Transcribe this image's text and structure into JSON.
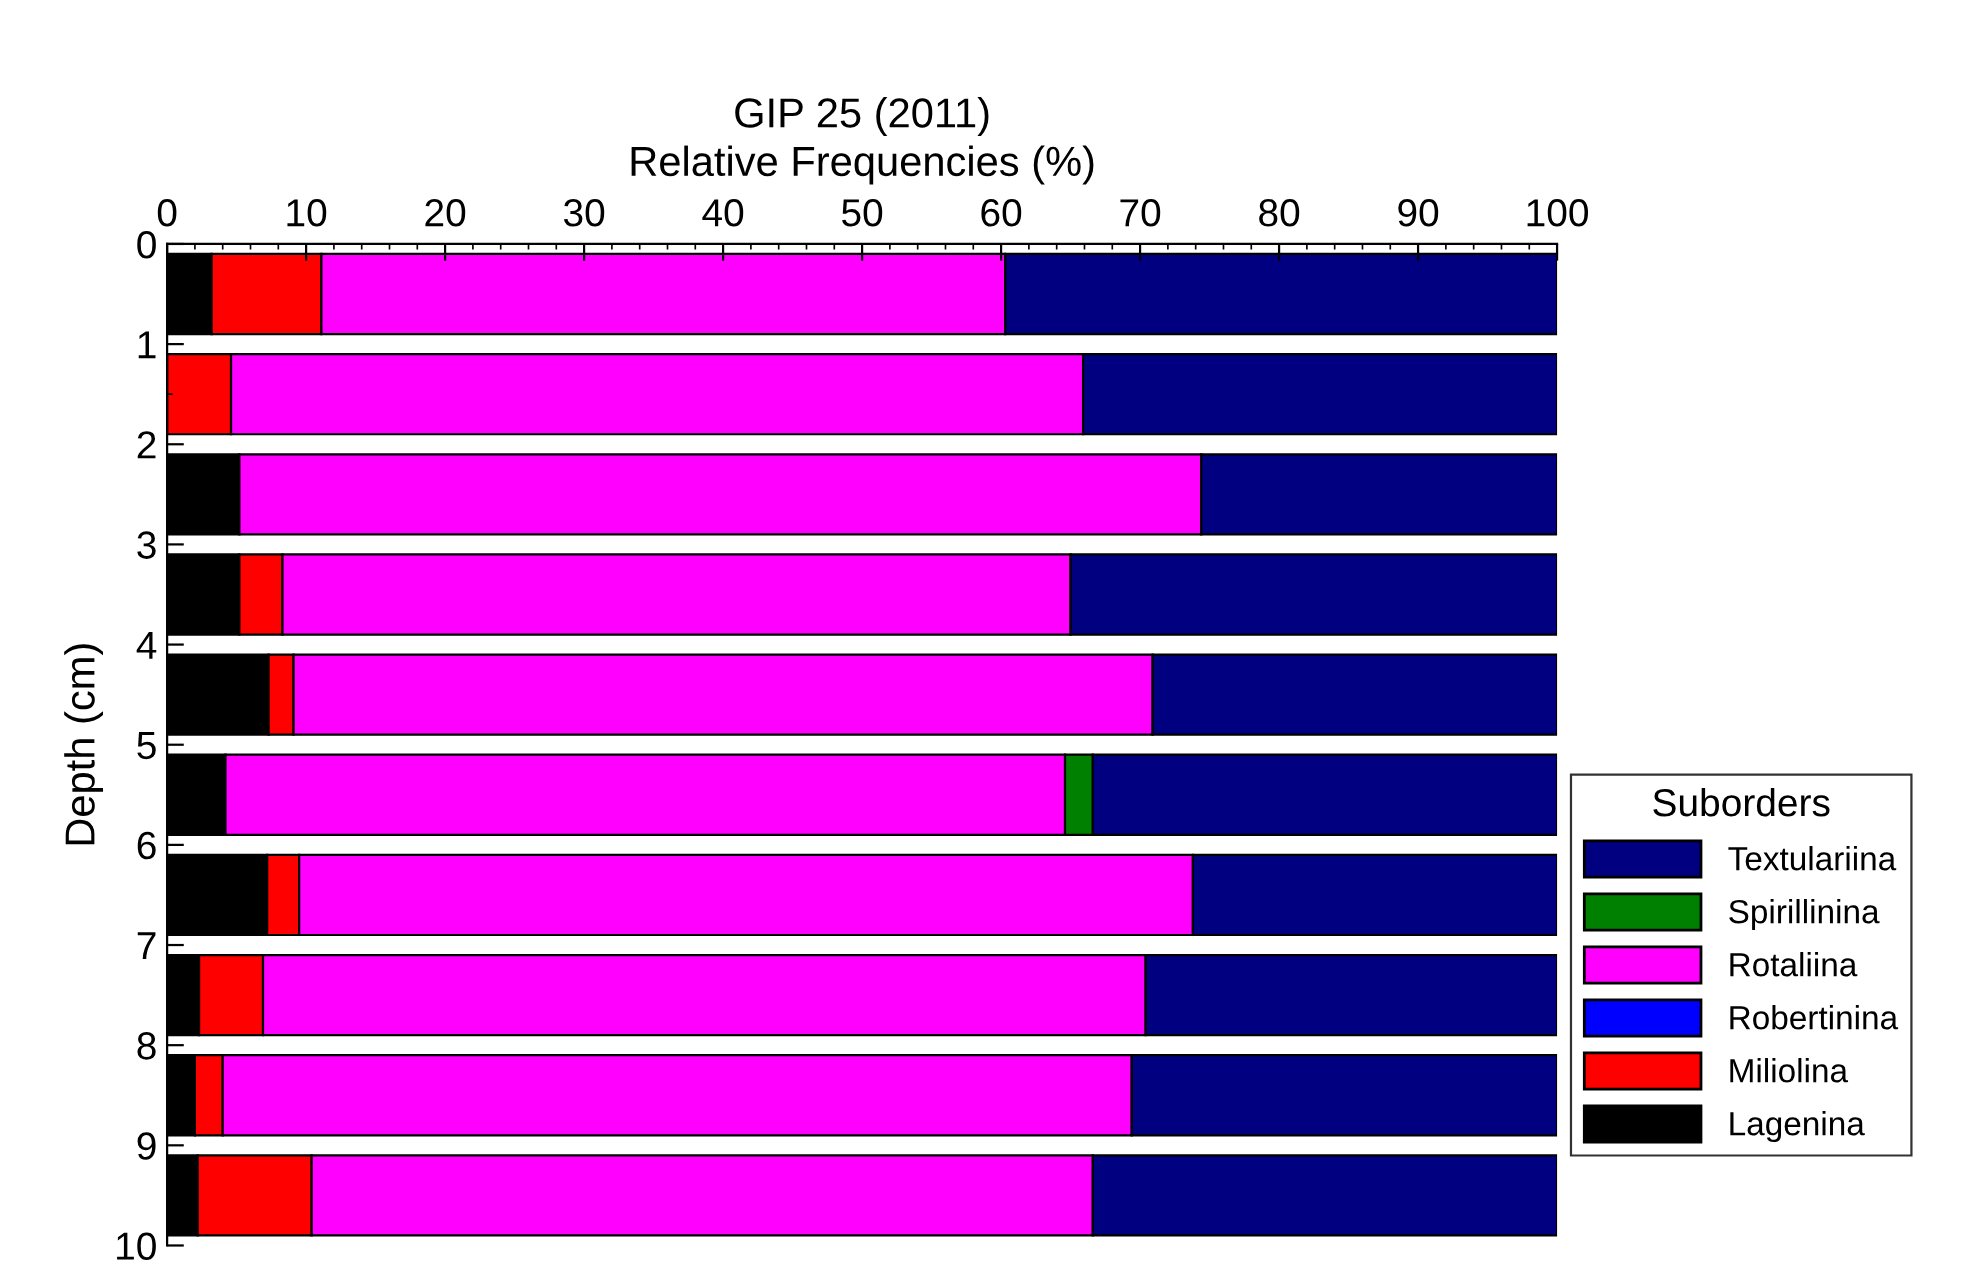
{
  "chart_data": {
    "type": "bar",
    "orientation": "horizontal",
    "stacked": true,
    "title": "GIP 25 (2011)",
    "xlabel": "Relative Frequencies (%)",
    "ylabel": "Depth (cm)",
    "legend_title": "Suborders",
    "legend": "right",
    "x": [
      0.5,
      1.5,
      2.5,
      3.5,
      4.5,
      5.5,
      6.5,
      7.5,
      8.5,
      9.5
    ],
    "xlim": [
      0,
      100
    ],
    "xticks": [
      0,
      10,
      20,
      30,
      40,
      50,
      60,
      70,
      80,
      90,
      100
    ],
    "ylim": [
      10,
      0
    ],
    "yticks": [
      0,
      1,
      2,
      3,
      4,
      5,
      6,
      7,
      8,
      9,
      10
    ],
    "grid": false,
    "series": [
      {
        "name": "Lagenina",
        "color": "#000000",
        "values": [
          3.2,
          0,
          5.2,
          5.2,
          7.3,
          4.2,
          7.2,
          2.3,
          2.0,
          2.2
        ]
      },
      {
        "name": "Miliolina",
        "color": "#ff0000",
        "values": [
          7.9,
          4.6,
          0,
          3.1,
          1.8,
          0,
          2.3,
          4.6,
          2.0,
          8.2
        ]
      },
      {
        "name": "Robertinina",
        "color": "#0000ff",
        "values": [
          0,
          0,
          0,
          0,
          0,
          0,
          0,
          0,
          0,
          0
        ]
      },
      {
        "name": "Rotaliina",
        "color": "#ff00ff",
        "values": [
          49.2,
          61.3,
          69.2,
          56.7,
          61.8,
          60.4,
          64.3,
          63.5,
          65.4,
          56.2
        ]
      },
      {
        "name": "Spirillinina",
        "color": "#008000",
        "values": [
          0,
          0,
          0,
          0,
          0,
          2.0,
          0,
          0,
          0,
          0
        ]
      },
      {
        "name": "Textulariina",
        "color": "#000080",
        "values": [
          39.7,
          34.1,
          25.6,
          35.0,
          29.1,
          33.4,
          26.2,
          29.6,
          30.6,
          33.4
        ]
      }
    ]
  }
}
